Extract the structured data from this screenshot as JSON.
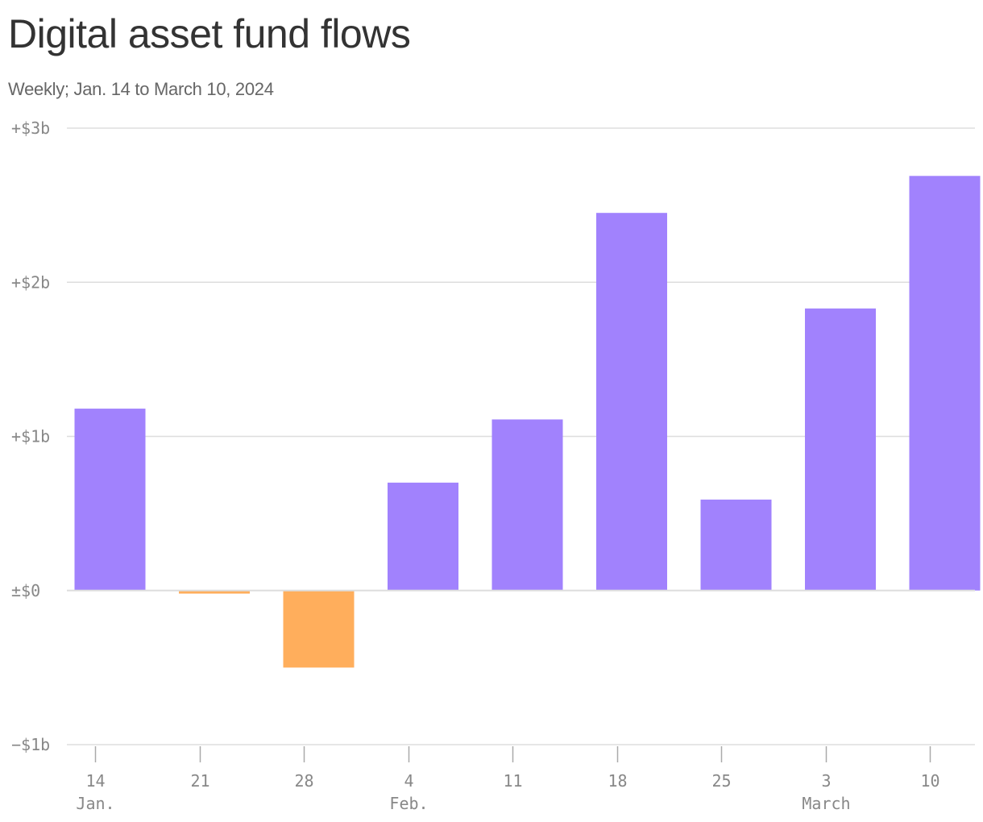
{
  "title": "Digital asset fund flows",
  "subtitle": "Weekly; Jan. 14 to March 10, 2024",
  "colors": {
    "positive": "#a182fd",
    "negative": "#ffae5c",
    "grid": "#dddddd",
    "text": "#888888"
  },
  "chart_data": {
    "type": "bar",
    "title": "Digital asset fund flows",
    "subtitle": "Weekly; Jan. 14 to March 10, 2024",
    "xlabel": "",
    "ylabel": "",
    "ylim": [
      -1,
      3
    ],
    "grid": true,
    "y_ticks": [
      {
        "value": 3,
        "label": "+$3b"
      },
      {
        "value": 2,
        "label": "+$2b"
      },
      {
        "value": 1,
        "label": "+$1b"
      },
      {
        "value": 0,
        "label": "±$0"
      },
      {
        "value": -1,
        "label": "−$1b"
      }
    ],
    "categories": [
      "14",
      "21",
      "28",
      "4",
      "11",
      "18",
      "25",
      "3",
      "10"
    ],
    "month_labels": [
      {
        "index": 0,
        "label": "Jan."
      },
      {
        "index": 3,
        "label": "Feb."
      },
      {
        "index": 7,
        "label": "March"
      }
    ],
    "values": [
      1.18,
      -0.02,
      -0.5,
      0.7,
      1.11,
      2.45,
      0.59,
      1.83,
      2.69
    ]
  }
}
